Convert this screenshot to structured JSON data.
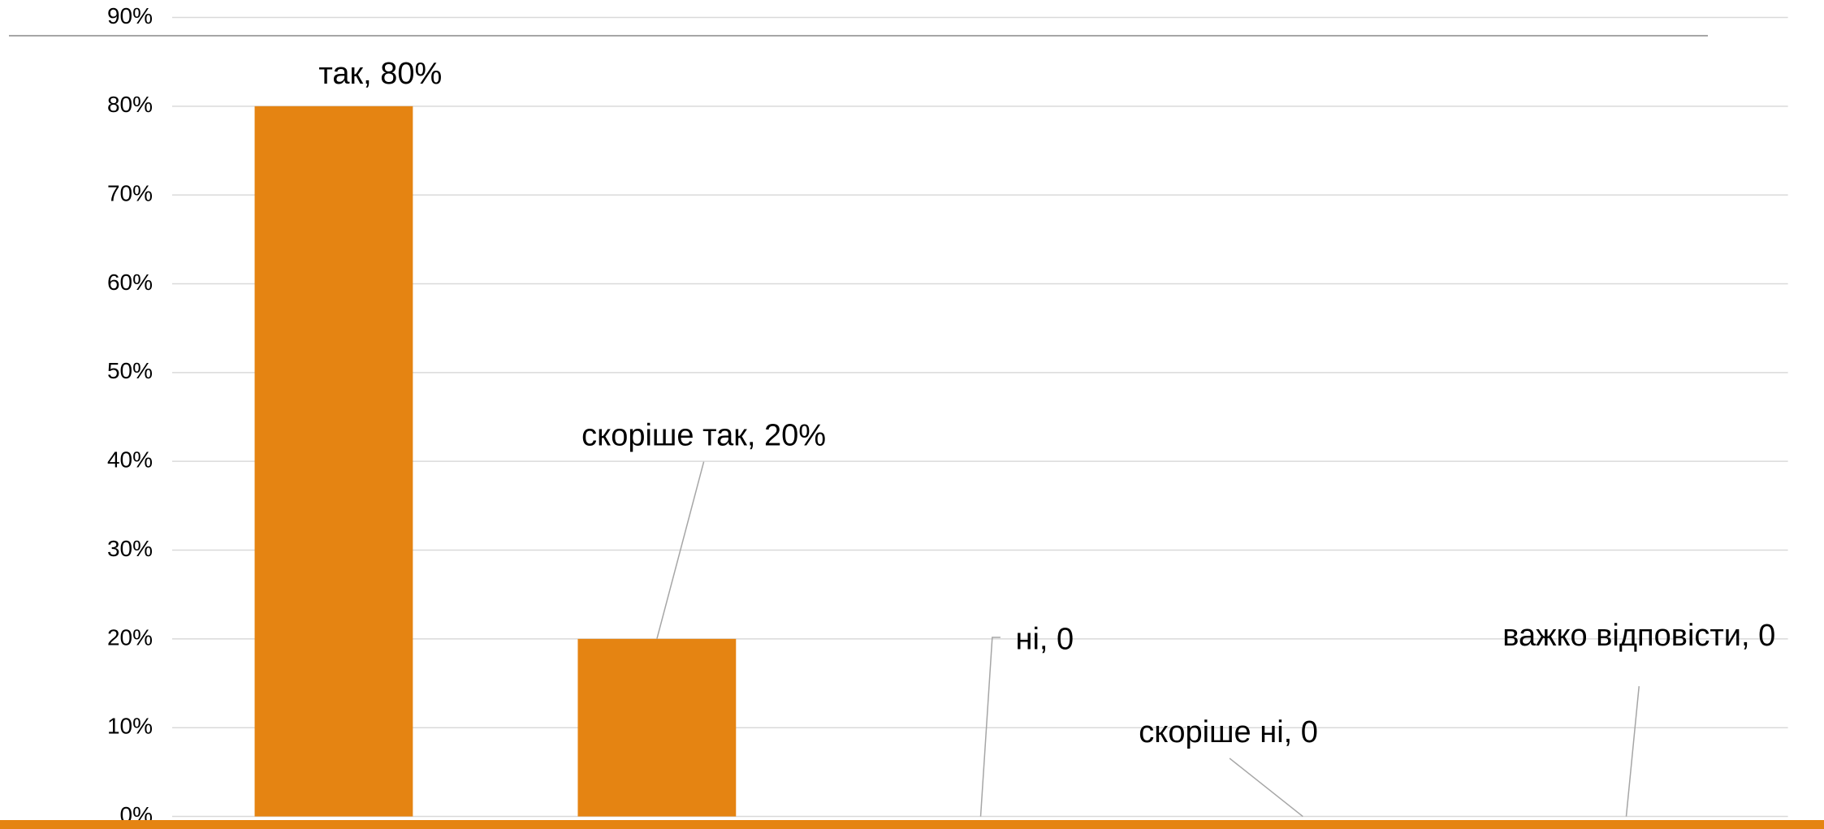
{
  "chart_data": {
    "type": "bar",
    "values": [
      80,
      20,
      0,
      0,
      0
    ],
    "value_labels": [
      "так, 80%",
      "скоріше так, 20%",
      "ні, 0",
      "скоріше ні, 0",
      "важко відповісти, 0"
    ],
    "color": "#e58412",
    "ylim": [
      0,
      90
    ],
    "yticks": [
      {
        "value": 0,
        "label": "0%"
      },
      {
        "value": 10,
        "label": "10%"
      },
      {
        "value": 20,
        "label": "20%"
      },
      {
        "value": 30,
        "label": "30%"
      },
      {
        "value": 40,
        "label": "40%"
      },
      {
        "value": 50,
        "label": "50%"
      },
      {
        "value": 60,
        "label": "60%"
      },
      {
        "value": 70,
        "label": "70%"
      },
      {
        "value": 80,
        "label": "80%"
      },
      {
        "value": 90,
        "label": "90%"
      }
    ],
    "grid": true
  }
}
